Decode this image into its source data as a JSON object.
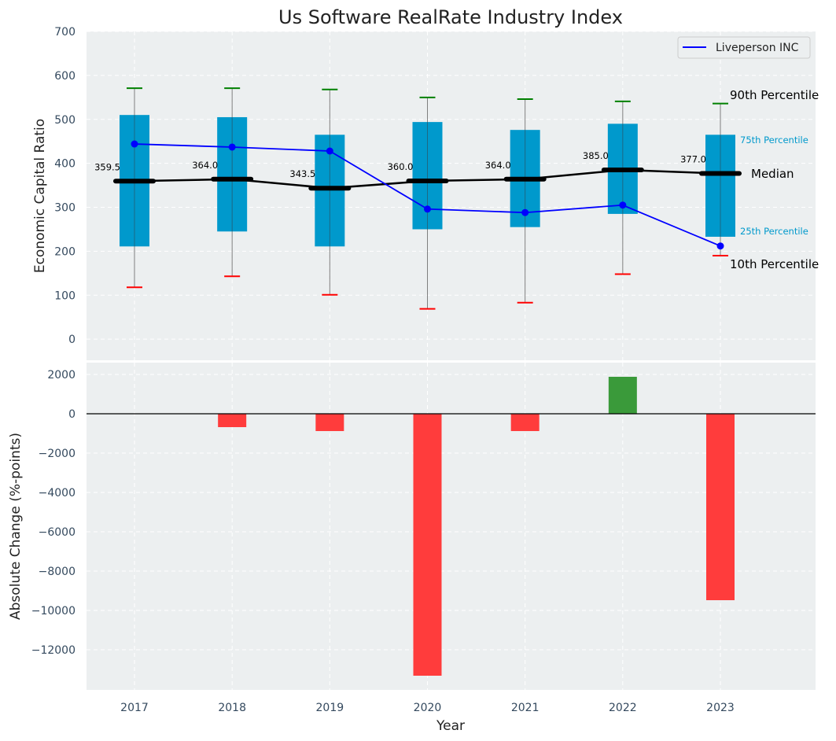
{
  "chart_data": [
    {
      "type": "box-percentile",
      "title": "Us Software RealRate Industry Index",
      "xlabel": "",
      "ylabel": "Economic Capital Ratio",
      "ylim": [
        -48,
        700
      ],
      "yticks": [
        0,
        100,
        200,
        300,
        400,
        500,
        600,
        700
      ],
      "grid": true,
      "categories": [
        "2017",
        "2018",
        "2019",
        "2020",
        "2021",
        "2022",
        "2023"
      ],
      "percentile_10": [
        118,
        143,
        101,
        69,
        83,
        148,
        190
      ],
      "percentile_25": [
        211,
        245,
        211,
        250,
        255,
        285,
        233
      ],
      "median": [
        359.5,
        364.0,
        343.5,
        360.0,
        364.0,
        385.0,
        377.0
      ],
      "median_labels": [
        "359.5",
        "364.0",
        "343.5",
        "360.0",
        "364.0",
        "385.0",
        "377.0"
      ],
      "percentile_75": [
        510,
        505,
        465,
        494,
        476,
        490,
        465
      ],
      "percentile_90": [
        571,
        571,
        568,
        550,
        546,
        541,
        536
      ],
      "series": [
        {
          "name": "Liveperson INC",
          "values": [
            444,
            437,
            428,
            296,
            288,
            305,
            212
          ],
          "color": "#0000ff"
        }
      ],
      "legend": {
        "position": "top-right",
        "entries": [
          "Liveperson INC"
        ]
      },
      "annotations": {
        "p90": "90th Percentile",
        "p75": "75th Percentile",
        "median": "Median",
        "p25": "25th Percentile",
        "p10": "10th Percentile"
      },
      "colors": {
        "box": "#0099cc",
        "p90_cap": "#008000",
        "p10_cap": "#ff0000",
        "median": "#000000",
        "background": "#eceff0"
      }
    },
    {
      "type": "bar",
      "xlabel": "Year",
      "ylabel": "Absolute Change (%-points)",
      "ylim": [
        -14040,
        2600
      ],
      "yticks": [
        2000,
        0,
        -2000,
        -4000,
        -6000,
        -8000,
        -10000,
        -12000
      ],
      "ytick_labels": [
        "2000",
        "0",
        "−2000",
        "−4000",
        "−6000",
        "−8000",
        "−10000",
        "−12000"
      ],
      "grid": true,
      "categories": [
        "2017",
        "2018",
        "2019",
        "2020",
        "2021",
        "2022",
        "2023"
      ],
      "values": [
        0,
        -680,
        -880,
        -13320,
        -880,
        1880,
        -9480
      ],
      "colors": {
        "positive": "#3a9a3a",
        "negative": "#ff3c3c"
      }
    }
  ]
}
